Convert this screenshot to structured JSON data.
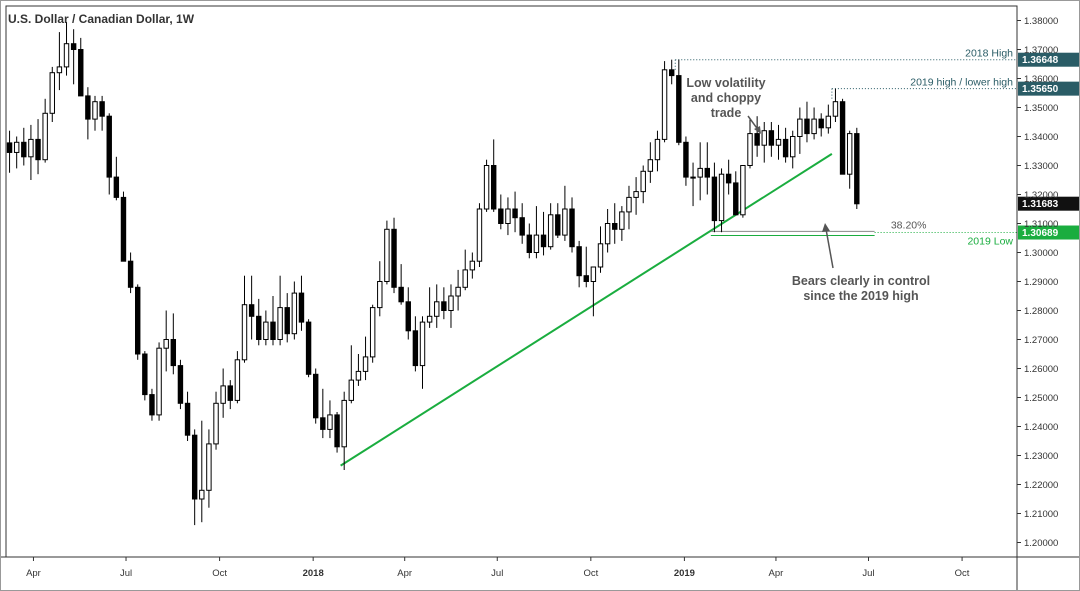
{
  "chart_data": {
    "type": "candlestick",
    "title": "U.S. Dollar / Canadian Dollar, 1W",
    "y_axis": {
      "range": [
        1.195,
        1.385
      ],
      "ticks": [
        "1.38000",
        "1.37000",
        "1.36000",
        "1.35000",
        "1.34000",
        "1.33000",
        "1.32000",
        "1.31000",
        "1.30000",
        "1.29000",
        "1.28000",
        "1.27000",
        "1.26000",
        "1.25000",
        "1.24000",
        "1.23000",
        "1.22000",
        "1.21000",
        "1.20000"
      ],
      "position": "right"
    },
    "x_axis": {
      "start": "2017-03-05",
      "end": "2019-11-24",
      "ticks": [
        {
          "label": "Apr",
          "date": "2017-04-01"
        },
        {
          "label": "Jul",
          "date": "2017-07-01"
        },
        {
          "label": "Oct",
          "date": "2017-10-01"
        },
        {
          "label": "2018",
          "date": "2018-01-01",
          "bold": true
        },
        {
          "label": "Apr",
          "date": "2018-04-01"
        },
        {
          "label": "Jul",
          "date": "2018-07-01"
        },
        {
          "label": "Oct",
          "date": "2018-10-01"
        },
        {
          "label": "2019",
          "date": "2019-01-01",
          "bold": true
        },
        {
          "label": "Apr",
          "date": "2019-04-01"
        },
        {
          "label": "Jul",
          "date": "2019-07-01"
        },
        {
          "label": "Oct",
          "date": "2019-10-01"
        }
      ]
    },
    "grid": false,
    "colors": {
      "up": "#ffffff",
      "down": "#000000",
      "wick": "#000000",
      "trendline": "#1aad3f",
      "level_dark": "#2a5c66",
      "level_green": "#1aad3f",
      "last_price": "#111111"
    },
    "candles": [
      {
        "date": "2017-03-05",
        "o": 1.3378,
        "h": 1.342,
        "l": 1.3275,
        "c": 1.3345
      },
      {
        "date": "2017-03-12",
        "o": 1.3345,
        "h": 1.34,
        "l": 1.329,
        "c": 1.338
      },
      {
        "date": "2017-03-19",
        "o": 1.338,
        "h": 1.343,
        "l": 1.33,
        "c": 1.333
      },
      {
        "date": "2017-03-26",
        "o": 1.333,
        "h": 1.344,
        "l": 1.325,
        "c": 1.339
      },
      {
        "date": "2017-04-02",
        "o": 1.339,
        "h": 1.346,
        "l": 1.327,
        "c": 1.332
      },
      {
        "date": "2017-04-09",
        "o": 1.332,
        "h": 1.353,
        "l": 1.331,
        "c": 1.348
      },
      {
        "date": "2017-04-16",
        "o": 1.348,
        "h": 1.364,
        "l": 1.345,
        "c": 1.362
      },
      {
        "date": "2017-04-23",
        "o": 1.362,
        "h": 1.376,
        "l": 1.356,
        "c": 1.364
      },
      {
        "date": "2017-04-30",
        "o": 1.364,
        "h": 1.3795,
        "l": 1.361,
        "c": 1.372
      },
      {
        "date": "2017-05-07",
        "o": 1.372,
        "h": 1.377,
        "l": 1.358,
        "c": 1.37
      },
      {
        "date": "2017-05-14",
        "o": 1.37,
        "h": 1.374,
        "l": 1.354,
        "c": 1.354
      },
      {
        "date": "2017-05-21",
        "o": 1.354,
        "h": 1.357,
        "l": 1.339,
        "c": 1.346
      },
      {
        "date": "2017-05-28",
        "o": 1.346,
        "h": 1.354,
        "l": 1.342,
        "c": 1.352
      },
      {
        "date": "2017-06-04",
        "o": 1.352,
        "h": 1.354,
        "l": 1.342,
        "c": 1.347
      },
      {
        "date": "2017-06-11",
        "o": 1.347,
        "h": 1.348,
        "l": 1.32,
        "c": 1.326
      },
      {
        "date": "2017-06-18",
        "o": 1.326,
        "h": 1.333,
        "l": 1.318,
        "c": 1.319
      },
      {
        "date": "2017-06-25",
        "o": 1.319,
        "h": 1.321,
        "l": 1.297,
        "c": 1.297
      },
      {
        "date": "2017-07-02",
        "o": 1.297,
        "h": 1.3,
        "l": 1.286,
        "c": 1.288
      },
      {
        "date": "2017-07-09",
        "o": 1.288,
        "h": 1.289,
        "l": 1.263,
        "c": 1.265
      },
      {
        "date": "2017-07-16",
        "o": 1.265,
        "h": 1.266,
        "l": 1.249,
        "c": 1.251
      },
      {
        "date": "2017-07-23",
        "o": 1.251,
        "h": 1.253,
        "l": 1.242,
        "c": 1.244
      },
      {
        "date": "2017-07-30",
        "o": 1.244,
        "h": 1.269,
        "l": 1.242,
        "c": 1.267
      },
      {
        "date": "2017-08-06",
        "o": 1.267,
        "h": 1.28,
        "l": 1.259,
        "c": 1.27
      },
      {
        "date": "2017-08-13",
        "o": 1.27,
        "h": 1.279,
        "l": 1.258,
        "c": 1.261
      },
      {
        "date": "2017-08-20",
        "o": 1.261,
        "h": 1.263,
        "l": 1.246,
        "c": 1.248
      },
      {
        "date": "2017-08-27",
        "o": 1.248,
        "h": 1.252,
        "l": 1.235,
        "c": 1.237
      },
      {
        "date": "2017-09-03",
        "o": 1.237,
        "h": 1.239,
        "l": 1.206,
        "c": 1.215
      },
      {
        "date": "2017-09-10",
        "o": 1.215,
        "h": 1.242,
        "l": 1.207,
        "c": 1.218
      },
      {
        "date": "2017-09-17",
        "o": 1.218,
        "h": 1.239,
        "l": 1.212,
        "c": 1.234
      },
      {
        "date": "2017-09-24",
        "o": 1.234,
        "h": 1.252,
        "l": 1.232,
        "c": 1.248
      },
      {
        "date": "2017-10-01",
        "o": 1.248,
        "h": 1.26,
        "l": 1.243,
        "c": 1.254
      },
      {
        "date": "2017-10-08",
        "o": 1.254,
        "h": 1.256,
        "l": 1.246,
        "c": 1.249
      },
      {
        "date": "2017-10-15",
        "o": 1.249,
        "h": 1.266,
        "l": 1.248,
        "c": 1.263
      },
      {
        "date": "2017-10-22",
        "o": 1.263,
        "h": 1.292,
        "l": 1.262,
        "c": 1.282
      },
      {
        "date": "2017-10-29",
        "o": 1.282,
        "h": 1.292,
        "l": 1.27,
        "c": 1.278
      },
      {
        "date": "2017-11-05",
        "o": 1.278,
        "h": 1.284,
        "l": 1.268,
        "c": 1.27
      },
      {
        "date": "2017-11-12",
        "o": 1.27,
        "h": 1.28,
        "l": 1.268,
        "c": 1.276
      },
      {
        "date": "2017-11-19",
        "o": 1.276,
        "h": 1.285,
        "l": 1.268,
        "c": 1.27
      },
      {
        "date": "2017-11-26",
        "o": 1.27,
        "h": 1.292,
        "l": 1.268,
        "c": 1.281
      },
      {
        "date": "2017-12-03",
        "o": 1.281,
        "h": 1.286,
        "l": 1.269,
        "c": 1.272
      },
      {
        "date": "2017-12-10",
        "o": 1.272,
        "h": 1.29,
        "l": 1.27,
        "c": 1.286
      },
      {
        "date": "2017-12-17",
        "o": 1.286,
        "h": 1.292,
        "l": 1.273,
        "c": 1.276
      },
      {
        "date": "2017-12-24",
        "o": 1.276,
        "h": 1.277,
        "l": 1.257,
        "c": 1.258
      },
      {
        "date": "2017-12-31",
        "o": 1.258,
        "h": 1.26,
        "l": 1.241,
        "c": 1.243
      },
      {
        "date": "2018-01-07",
        "o": 1.243,
        "h": 1.253,
        "l": 1.236,
        "c": 1.239
      },
      {
        "date": "2018-01-14",
        "o": 1.239,
        "h": 1.249,
        "l": 1.236,
        "c": 1.244
      },
      {
        "date": "2018-01-21",
        "o": 1.244,
        "h": 1.245,
        "l": 1.231,
        "c": 1.233
      },
      {
        "date": "2018-01-28",
        "o": 1.233,
        "h": 1.252,
        "l": 1.225,
        "c": 1.249
      },
      {
        "date": "2018-02-04",
        "o": 1.249,
        "h": 1.268,
        "l": 1.248,
        "c": 1.256
      },
      {
        "date": "2018-02-11",
        "o": 1.256,
        "h": 1.265,
        "l": 1.254,
        "c": 1.259
      },
      {
        "date": "2018-02-18",
        "o": 1.259,
        "h": 1.271,
        "l": 1.256,
        "c": 1.264
      },
      {
        "date": "2018-02-25",
        "o": 1.264,
        "h": 1.282,
        "l": 1.262,
        "c": 1.281
      },
      {
        "date": "2018-03-04",
        "o": 1.281,
        "h": 1.297,
        "l": 1.278,
        "c": 1.29
      },
      {
        "date": "2018-03-11",
        "o": 1.29,
        "h": 1.311,
        "l": 1.289,
        "c": 1.308
      },
      {
        "date": "2018-03-18",
        "o": 1.308,
        "h": 1.312,
        "l": 1.286,
        "c": 1.288
      },
      {
        "date": "2018-03-25",
        "o": 1.288,
        "h": 1.296,
        "l": 1.282,
        "c": 1.283
      },
      {
        "date": "2018-04-01",
        "o": 1.283,
        "h": 1.288,
        "l": 1.27,
        "c": 1.273
      },
      {
        "date": "2018-04-08",
        "o": 1.273,
        "h": 1.278,
        "l": 1.259,
        "c": 1.261
      },
      {
        "date": "2018-04-15",
        "o": 1.261,
        "h": 1.278,
        "l": 1.253,
        "c": 1.276
      },
      {
        "date": "2018-04-22",
        "o": 1.276,
        "h": 1.288,
        "l": 1.274,
        "c": 1.278
      },
      {
        "date": "2018-04-29",
        "o": 1.278,
        "h": 1.289,
        "l": 1.274,
        "c": 1.283
      },
      {
        "date": "2018-05-06",
        "o": 1.283,
        "h": 1.288,
        "l": 1.277,
        "c": 1.28
      },
      {
        "date": "2018-05-13",
        "o": 1.28,
        "h": 1.289,
        "l": 1.274,
        "c": 1.285
      },
      {
        "date": "2018-05-20",
        "o": 1.285,
        "h": 1.294,
        "l": 1.28,
        "c": 1.288
      },
      {
        "date": "2018-05-27",
        "o": 1.288,
        "h": 1.301,
        "l": 1.287,
        "c": 1.294
      },
      {
        "date": "2018-06-03",
        "o": 1.294,
        "h": 1.3,
        "l": 1.291,
        "c": 1.297
      },
      {
        "date": "2018-06-10",
        "o": 1.297,
        "h": 1.317,
        "l": 1.295,
        "c": 1.315
      },
      {
        "date": "2018-06-17",
        "o": 1.315,
        "h": 1.332,
        "l": 1.314,
        "c": 1.33
      },
      {
        "date": "2018-06-24",
        "o": 1.33,
        "h": 1.339,
        "l": 1.314,
        "c": 1.315
      },
      {
        "date": "2018-07-01",
        "o": 1.315,
        "h": 1.32,
        "l": 1.308,
        "c": 1.31
      },
      {
        "date": "2018-07-08",
        "o": 1.31,
        "h": 1.319,
        "l": 1.306,
        "c": 1.315
      },
      {
        "date": "2018-07-15",
        "o": 1.315,
        "h": 1.321,
        "l": 1.307,
        "c": 1.312
      },
      {
        "date": "2018-07-22",
        "o": 1.312,
        "h": 1.317,
        "l": 1.303,
        "c": 1.306
      },
      {
        "date": "2018-07-29",
        "o": 1.306,
        "h": 1.31,
        "l": 1.298,
        "c": 1.3
      },
      {
        "date": "2018-08-05",
        "o": 1.3,
        "h": 1.316,
        "l": 1.298,
        "c": 1.306
      },
      {
        "date": "2018-08-12",
        "o": 1.306,
        "h": 1.314,
        "l": 1.299,
        "c": 1.302
      },
      {
        "date": "2018-08-19",
        "o": 1.302,
        "h": 1.317,
        "l": 1.301,
        "c": 1.313
      },
      {
        "date": "2018-08-26",
        "o": 1.313,
        "h": 1.317,
        "l": 1.305,
        "c": 1.306
      },
      {
        "date": "2018-09-02",
        "o": 1.306,
        "h": 1.323,
        "l": 1.304,
        "c": 1.315
      },
      {
        "date": "2018-09-09",
        "o": 1.315,
        "h": 1.319,
        "l": 1.3,
        "c": 1.302
      },
      {
        "date": "2018-09-16",
        "o": 1.302,
        "h": 1.304,
        "l": 1.288,
        "c": 1.292
      },
      {
        "date": "2018-09-23",
        "o": 1.292,
        "h": 1.302,
        "l": 1.288,
        "c": 1.29
      },
      {
        "date": "2018-09-30",
        "o": 1.29,
        "h": 1.295,
        "l": 1.278,
        "c": 1.295
      },
      {
        "date": "2018-10-07",
        "o": 1.295,
        "h": 1.309,
        "l": 1.293,
        "c": 1.303
      },
      {
        "date": "2018-10-14",
        "o": 1.303,
        "h": 1.315,
        "l": 1.3,
        "c": 1.31
      },
      {
        "date": "2018-10-21",
        "o": 1.31,
        "h": 1.317,
        "l": 1.303,
        "c": 1.308
      },
      {
        "date": "2018-10-28",
        "o": 1.308,
        "h": 1.316,
        "l": 1.304,
        "c": 1.314
      },
      {
        "date": "2018-11-04",
        "o": 1.314,
        "h": 1.323,
        "l": 1.308,
        "c": 1.319
      },
      {
        "date": "2018-11-11",
        "o": 1.319,
        "h": 1.326,
        "l": 1.313,
        "c": 1.321
      },
      {
        "date": "2018-11-18",
        "o": 1.321,
        "h": 1.33,
        "l": 1.317,
        "c": 1.328
      },
      {
        "date": "2018-11-25",
        "o": 1.328,
        "h": 1.338,
        "l": 1.324,
        "c": 1.332
      },
      {
        "date": "2018-12-02",
        "o": 1.332,
        "h": 1.342,
        "l": 1.328,
        "c": 1.339
      },
      {
        "date": "2018-12-09",
        "o": 1.339,
        "h": 1.366,
        "l": 1.338,
        "c": 1.363
      },
      {
        "date": "2018-12-16",
        "o": 1.363,
        "h": 1.3665,
        "l": 1.358,
        "c": 1.361
      },
      {
        "date": "2018-12-23",
        "o": 1.361,
        "h": 1.3665,
        "l": 1.337,
        "c": 1.338
      },
      {
        "date": "2018-12-30",
        "o": 1.338,
        "h": 1.34,
        "l": 1.323,
        "c": 1.326
      },
      {
        "date": "2019-01-06",
        "o": 1.326,
        "h": 1.331,
        "l": 1.316,
        "c": 1.326
      },
      {
        "date": "2019-01-13",
        "o": 1.326,
        "h": 1.338,
        "l": 1.318,
        "c": 1.329
      },
      {
        "date": "2019-01-20",
        "o": 1.329,
        "h": 1.338,
        "l": 1.32,
        "c": 1.326
      },
      {
        "date": "2019-01-27",
        "o": 1.326,
        "h": 1.331,
        "l": 1.307,
        "c": 1.311
      },
      {
        "date": "2019-02-03",
        "o": 1.311,
        "h": 1.329,
        "l": 1.307,
        "c": 1.327
      },
      {
        "date": "2019-02-10",
        "o": 1.327,
        "h": 1.332,
        "l": 1.32,
        "c": 1.324
      },
      {
        "date": "2019-02-17",
        "o": 1.324,
        "h": 1.328,
        "l": 1.313,
        "c": 1.313
      },
      {
        "date": "2019-02-24",
        "o": 1.313,
        "h": 1.33,
        "l": 1.312,
        "c": 1.33
      },
      {
        "date": "2019-03-03",
        "o": 1.33,
        "h": 1.346,
        "l": 1.329,
        "c": 1.341
      },
      {
        "date": "2019-03-10",
        "o": 1.341,
        "h": 1.347,
        "l": 1.333,
        "c": 1.337
      },
      {
        "date": "2019-03-17",
        "o": 1.337,
        "h": 1.345,
        "l": 1.331,
        "c": 1.342
      },
      {
        "date": "2019-03-24",
        "o": 1.342,
        "h": 1.345,
        "l": 1.333,
        "c": 1.337
      },
      {
        "date": "2019-03-31",
        "o": 1.337,
        "h": 1.344,
        "l": 1.332,
        "c": 1.339
      },
      {
        "date": "2019-04-07",
        "o": 1.339,
        "h": 1.343,
        "l": 1.331,
        "c": 1.333
      },
      {
        "date": "2019-04-14",
        "o": 1.333,
        "h": 1.342,
        "l": 1.329,
        "c": 1.34
      },
      {
        "date": "2019-04-21",
        "o": 1.34,
        "h": 1.35,
        "l": 1.334,
        "c": 1.346
      },
      {
        "date": "2019-04-28",
        "o": 1.346,
        "h": 1.352,
        "l": 1.338,
        "c": 1.341
      },
      {
        "date": "2019-05-05",
        "o": 1.341,
        "h": 1.35,
        "l": 1.339,
        "c": 1.346
      },
      {
        "date": "2019-05-12",
        "o": 1.346,
        "h": 1.348,
        "l": 1.34,
        "c": 1.343
      },
      {
        "date": "2019-05-19",
        "o": 1.343,
        "h": 1.351,
        "l": 1.341,
        "c": 1.347
      },
      {
        "date": "2019-05-26",
        "o": 1.347,
        "h": 1.3565,
        "l": 1.345,
        "c": 1.352
      },
      {
        "date": "2019-06-02",
        "o": 1.352,
        "h": 1.353,
        "l": 1.327,
        "c": 1.327
      },
      {
        "date": "2019-06-09",
        "o": 1.327,
        "h": 1.342,
        "l": 1.322,
        "c": 1.341
      },
      {
        "date": "2019-06-16",
        "o": 1.341,
        "h": 1.343,
        "l": 1.315,
        "c": 1.3168
      }
    ],
    "trendline": {
      "from": {
        "date": "2018-01-28",
        "value": 1.2265
      },
      "to": {
        "date": "2019-05-26",
        "value": 1.334
      }
    },
    "levels": [
      {
        "name": "2018 High",
        "value": 1.36648,
        "label": "1.36648",
        "style": "dotted",
        "color": "dark",
        "start_date": "2018-12-23"
      },
      {
        "name": "2019 high / lower high",
        "value": 1.3565,
        "label": "1.35650",
        "style": "dotted",
        "color": "dark",
        "start_date": "2019-05-26"
      },
      {
        "name": "2019 Low",
        "value": 1.30689,
        "label": "1.30689",
        "style": "solid",
        "color": "green",
        "start_date": "2019-01-27"
      }
    ],
    "fib_level": {
      "label": "38.20%",
      "value": 1.3073,
      "start_date": "2019-01-27",
      "end_date": "2019-07-07"
    },
    "last_price": {
      "value": 1.31683,
      "label": "1.31683"
    },
    "annotations": [
      {
        "id": "low-vol",
        "lines": [
          "Low volatility",
          "and choppy",
          "trade"
        ]
      },
      {
        "id": "bears",
        "lines": [
          "Bears clearly in control",
          "since the 2019 high"
        ]
      }
    ]
  }
}
